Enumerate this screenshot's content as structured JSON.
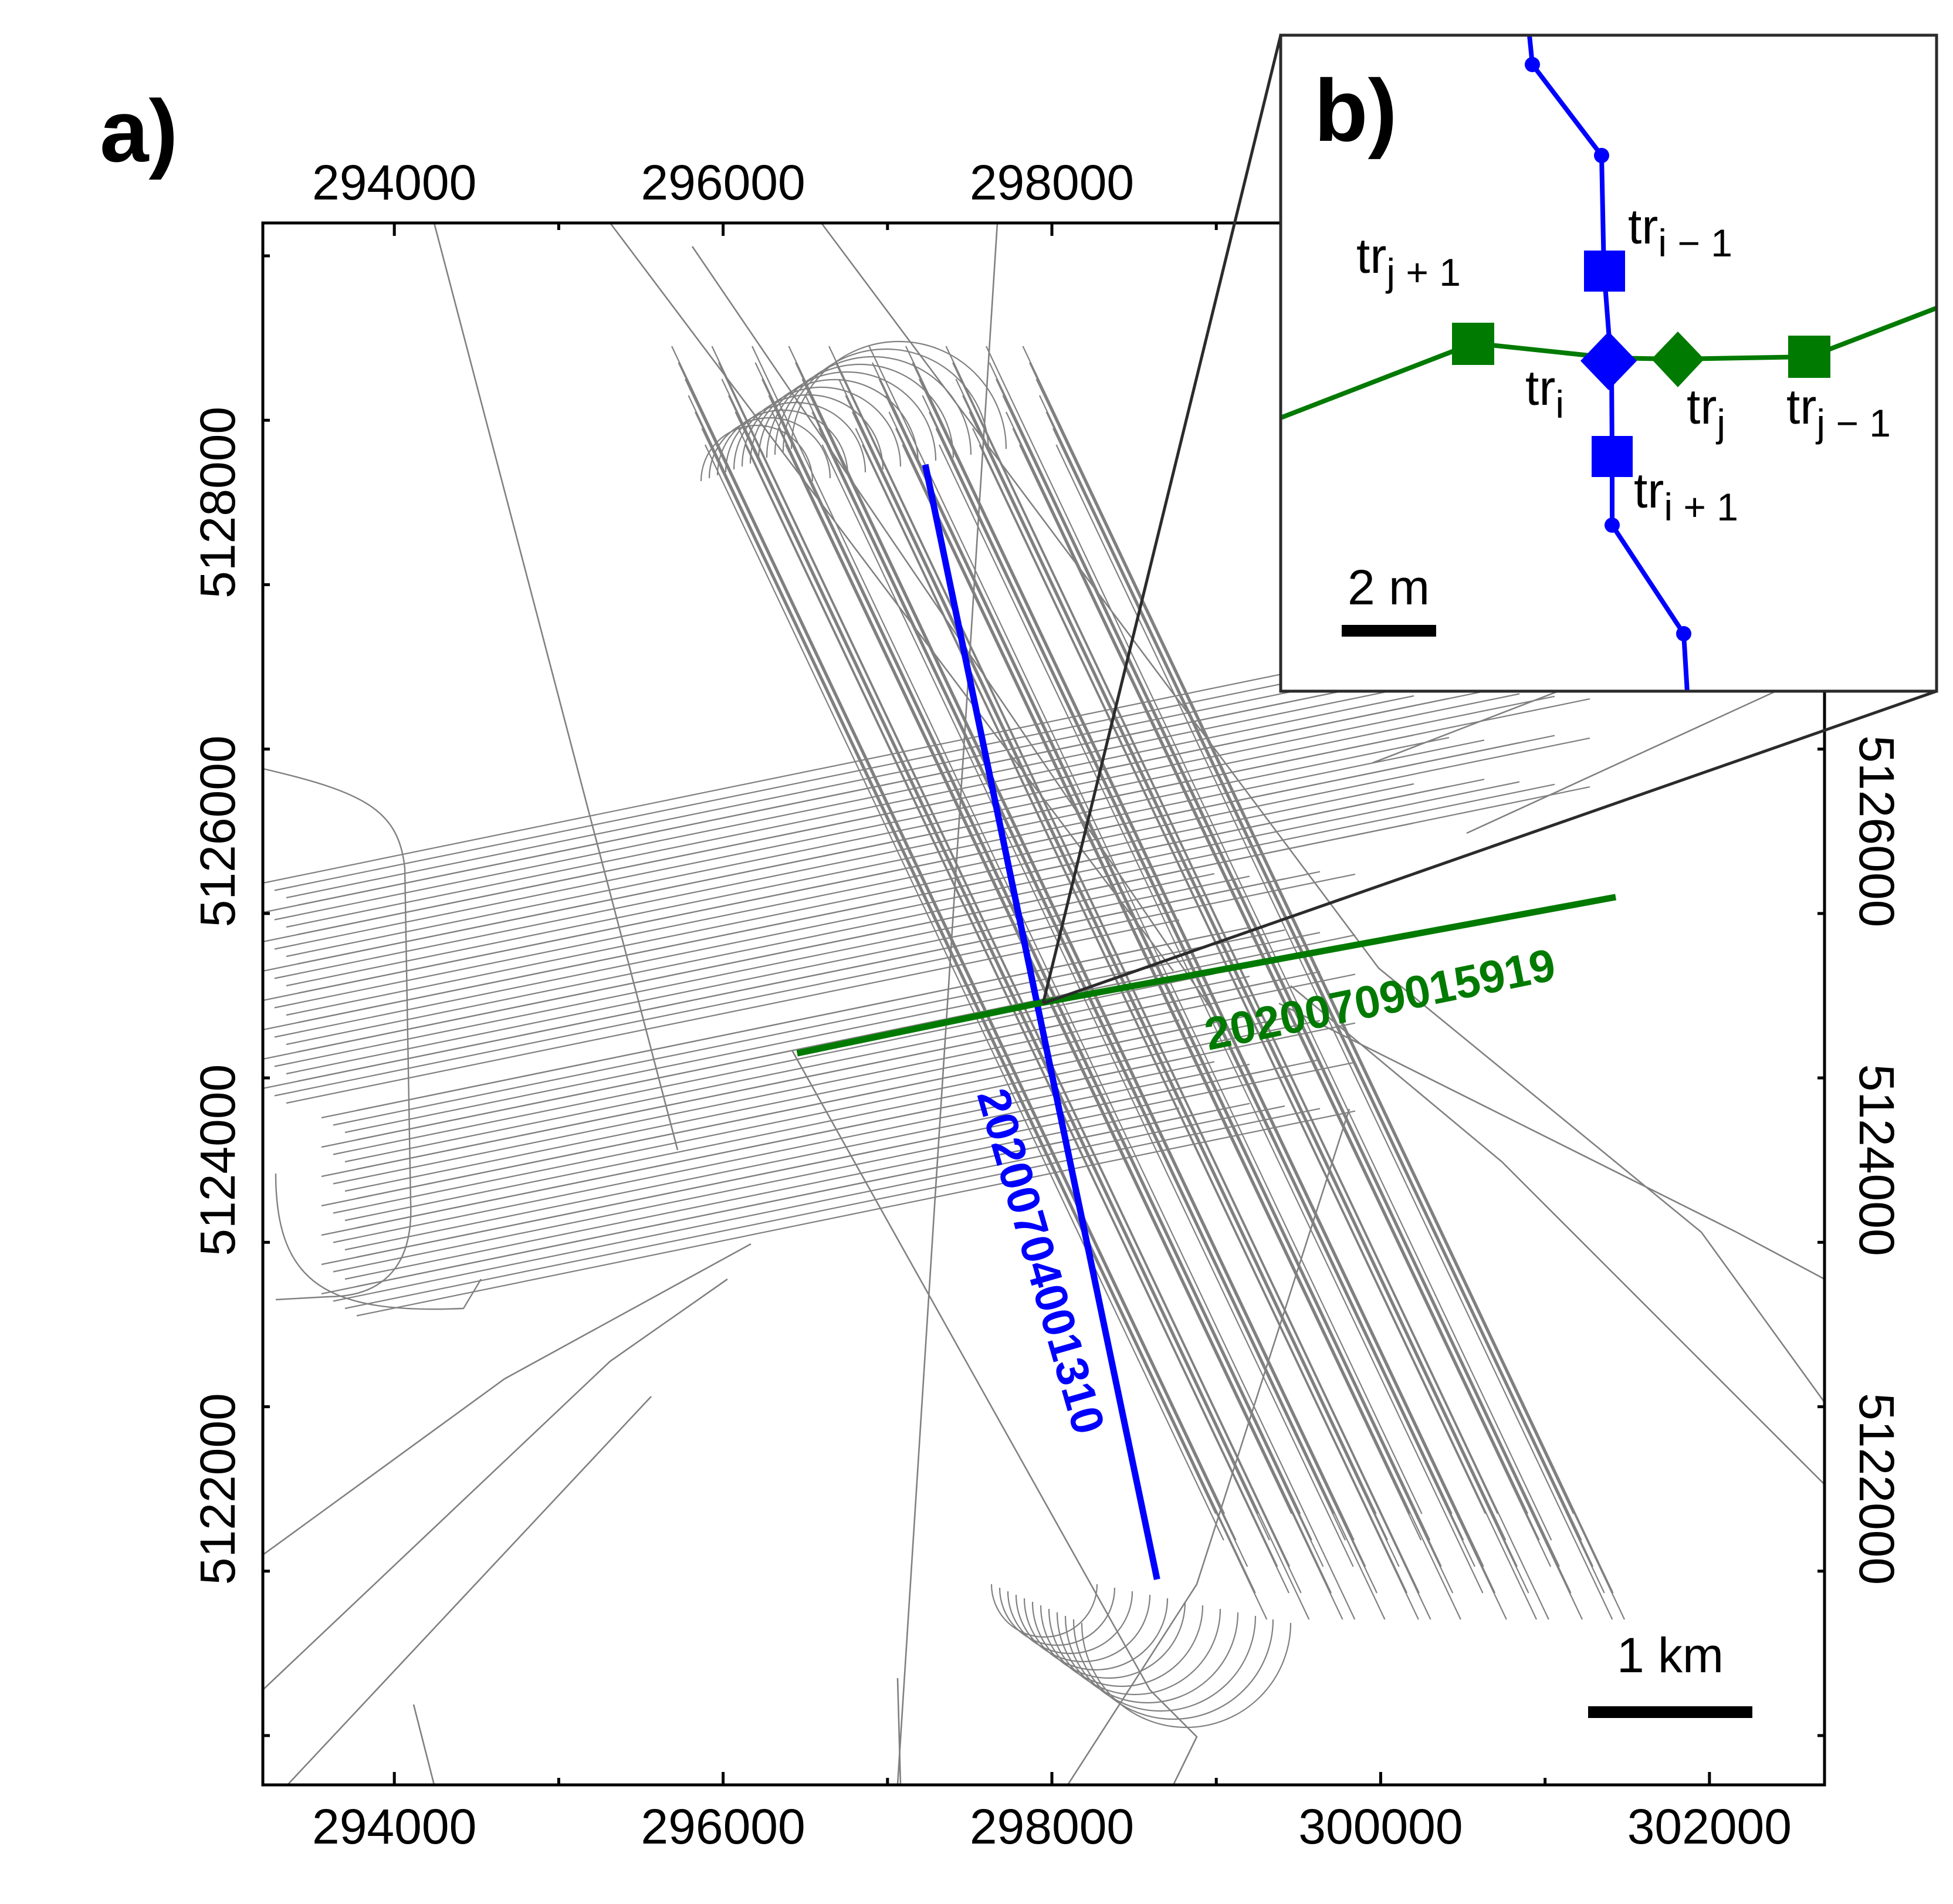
{
  "chart_data": [
    {
      "panel": "a)",
      "type": "line",
      "description_note": "",
      "x_ticks": [
        294000,
        296000,
        298000,
        300000,
        302000
      ],
      "x_ticks_top": [
        294000,
        296000,
        298000
      ],
      "y_ticks": [
        5122000,
        5124000,
        5126000,
        5128000
      ],
      "xlim": [
        293200,
        302700
      ],
      "ylim": [
        5120200,
        5129700
      ],
      "series": [
        {
          "name": "20200704001310",
          "color": "#0000ff",
          "x": [
            297230,
            297900,
            298640
          ],
          "y": [
            5128230,
            5125000,
            5121450
          ]
        },
        {
          "name": "20200709015919",
          "color": "#007a00",
          "x": [
            296450,
            297900,
            301430
          ],
          "y": [
            5124650,
            5124950,
            5125600
          ]
        }
      ],
      "background_tracks_color": "#808080",
      "scale_bar_label": "1 km"
    },
    {
      "panel": "b)",
      "type": "scatter",
      "scale_bar_label": "2 m",
      "labels": {
        "tr_i_minus_1": {
          "base": "tr",
          "sub": "i − 1"
        },
        "tr_i": {
          "base": "tr",
          "sub": "i"
        },
        "tr_i_plus_1": {
          "base": "tr",
          "sub": "i + 1"
        },
        "tr_j_plus_1": {
          "base": "tr",
          "sub": "j + 1"
        },
        "tr_j": {
          "base": "tr",
          "sub": "j"
        },
        "tr_j_minus_1": {
          "base": "tr",
          "sub": "j − 1"
        }
      },
      "colors": {
        "track_i": "#0000ff",
        "track_j": "#007a00",
        "zoom_lines": "#2b2b2b"
      }
    }
  ]
}
